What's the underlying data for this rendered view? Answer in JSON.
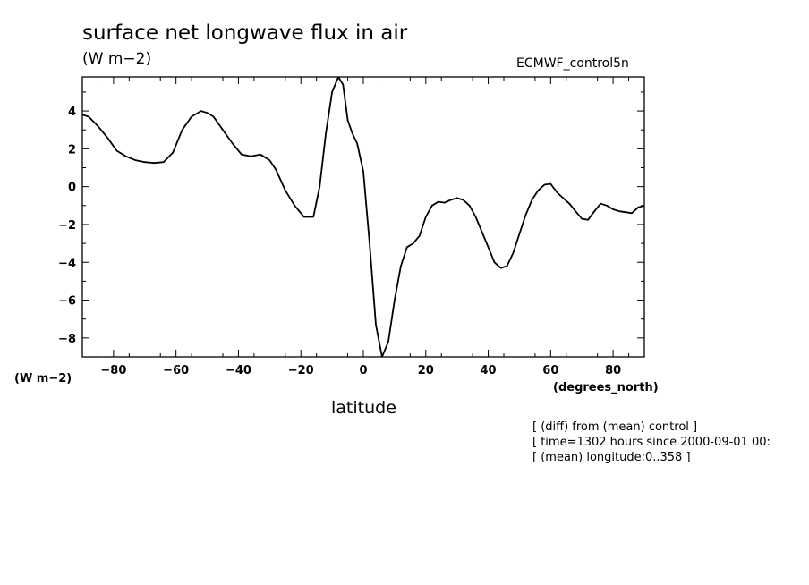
{
  "header": {
    "title": "surface net longwave flux in air",
    "units": "(W m−2)",
    "dataset": "ECMWF_control5n"
  },
  "axes": {
    "y_units": "(W m−2)",
    "x_units": "(degrees_north)",
    "x_label": "latitude"
  },
  "notes": [
    "[ (diff) from (mean) control ]",
    "[ time=1302 hours since 2000-09-01 00:",
    "[ (mean) longitude:0..358 ]"
  ],
  "chart_data": {
    "type": "line",
    "title": "surface net longwave flux in air",
    "xlabel": "latitude",
    "ylabel": "(W m−2)",
    "xlim": [
      -90,
      90
    ],
    "ylim": [
      -9,
      5.8
    ],
    "x_ticks": [
      -80,
      -60,
      -40,
      -20,
      0,
      20,
      40,
      60,
      80
    ],
    "y_ticks": [
      4,
      2,
      0,
      -2,
      -4,
      -6,
      -8
    ],
    "x_tick_labels": [
      "−80",
      "−60",
      "−40",
      "−20",
      "0",
      "20",
      "40",
      "60",
      "80"
    ],
    "y_tick_labels": [
      "4",
      "2",
      "0",
      "−2",
      "−4",
      "−6",
      "−8"
    ],
    "grid": false,
    "line_color": "#000000",
    "series": [
      {
        "x": [
          -90,
          -88,
          -85,
          -82,
          -79,
          -76,
          -73,
          -70,
          -67,
          -64,
          -61,
          -58,
          -55,
          -52,
          -50,
          -48,
          -45,
          -42,
          -39,
          -36,
          -33,
          -30,
          -28,
          -25,
          -22,
          -19,
          -16,
          -14,
          -12,
          -10,
          -8,
          -6.5,
          -5,
          -3.5,
          -2,
          0,
          2,
          4,
          6,
          8,
          10,
          12,
          14,
          16,
          18,
          20,
          22,
          24,
          26,
          28,
          30,
          32,
          34,
          36,
          38,
          40,
          42,
          44,
          46,
          48,
          50,
          52,
          54,
          56,
          58,
          60,
          62,
          64,
          66,
          68,
          70,
          72,
          74,
          76,
          78,
          80,
          82,
          84,
          86,
          88,
          90
        ],
        "y": [
          3.8,
          3.7,
          3.2,
          2.6,
          1.9,
          1.6,
          1.4,
          1.3,
          1.25,
          1.3,
          1.8,
          3.0,
          3.7,
          4.0,
          3.9,
          3.7,
          3.0,
          2.3,
          1.7,
          1.6,
          1.7,
          1.4,
          0.9,
          -0.2,
          -1.0,
          -1.6,
          -1.6,
          0.0,
          2.8,
          5.0,
          5.8,
          5.4,
          3.5,
          2.8,
          2.3,
          0.8,
          -3.0,
          -7.3,
          -9.0,
          -8.2,
          -6.0,
          -4.2,
          -3.2,
          -3.0,
          -2.6,
          -1.6,
          -1.0,
          -0.8,
          -0.85,
          -0.7,
          -0.6,
          -0.7,
          -1.0,
          -1.6,
          -2.4,
          -3.2,
          -4.0,
          -4.3,
          -4.2,
          -3.5,
          -2.5,
          -1.5,
          -0.7,
          -0.2,
          0.1,
          0.15,
          -0.3,
          -0.6,
          -0.9,
          -1.3,
          -1.7,
          -1.75,
          -1.3,
          -0.9,
          -1.0,
          -1.2,
          -1.3,
          -1.35,
          -1.4,
          -1.1,
          -1.0
        ]
      }
    ]
  }
}
